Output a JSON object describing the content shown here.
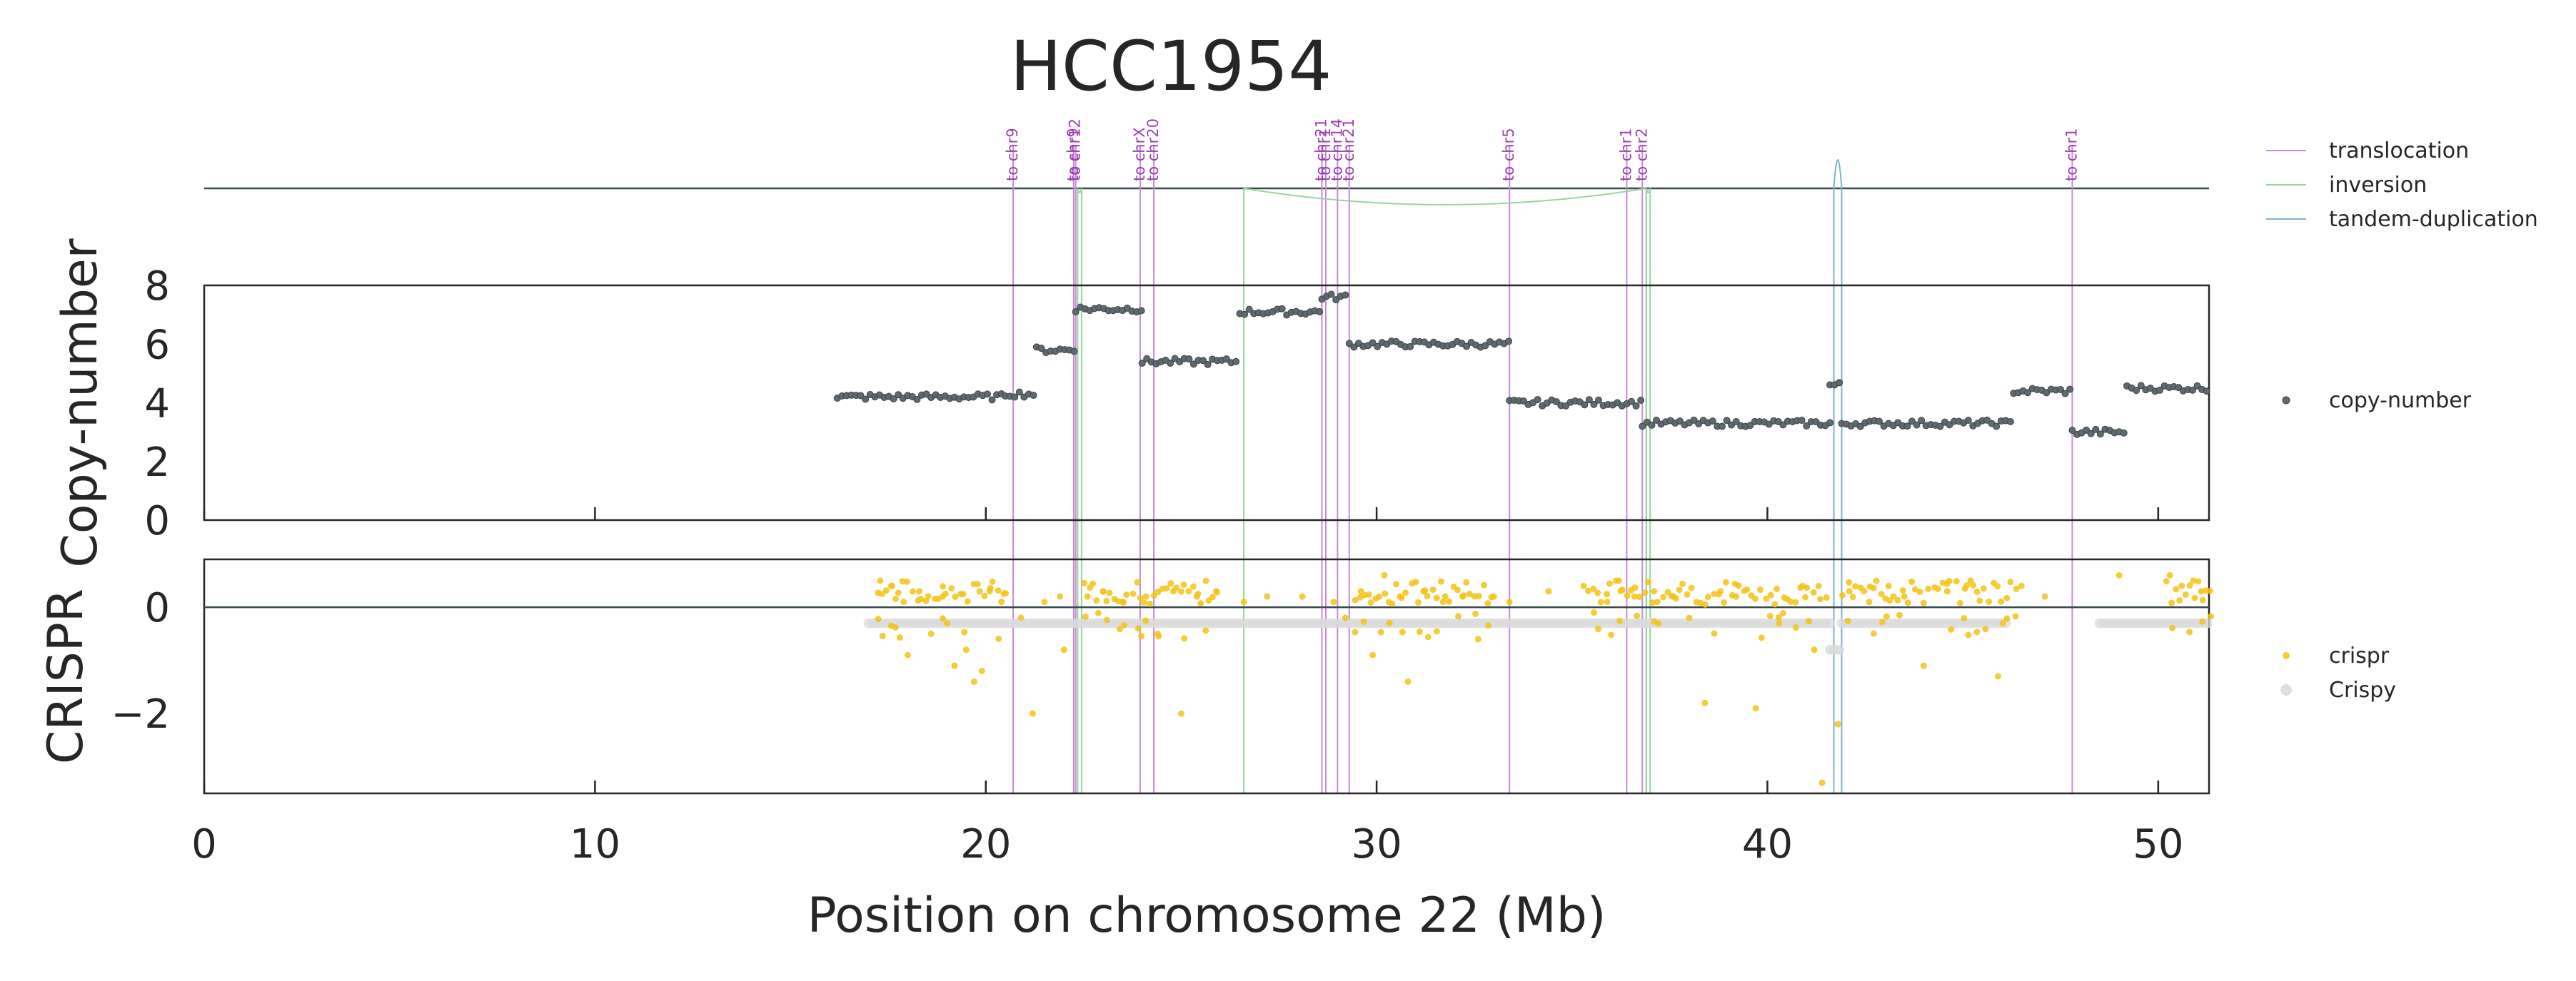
{
  "chart_data": {
    "type": "scatter",
    "title": "HCC1954",
    "xlabel": "Position on chromosome 22 (Mb)",
    "xlim": [
      0,
      51.3
    ],
    "x_ticks": [
      0,
      10,
      20,
      30,
      40,
      50
    ],
    "sv_track": {
      "translocations": [
        {
          "x": 20.7,
          "label": "to chr9"
        },
        {
          "x": 22.25,
          "label": "to chr9"
        },
        {
          "x": 22.3,
          "label": "to chr12"
        },
        {
          "x": 23.95,
          "label": "to chrX"
        },
        {
          "x": 24.3,
          "label": "to chr20"
        },
        {
          "x": 28.6,
          "label": "to chr21"
        },
        {
          "x": 28.7,
          "label": "to chr1"
        },
        {
          "x": 29.0,
          "label": "to chr14"
        },
        {
          "x": 29.3,
          "label": "to chr21"
        },
        {
          "x": 33.4,
          "label": "to chr5"
        },
        {
          "x": 36.4,
          "label": "to chr1"
        },
        {
          "x": 36.8,
          "label": "to chr2"
        },
        {
          "x": 47.8,
          "label": "to chr1"
        }
      ],
      "inversions": [
        {
          "start": 22.35,
          "end": 22.45
        },
        {
          "start": 26.6,
          "end": 36.9
        },
        {
          "start": 36.9,
          "end": 37.0
        }
      ],
      "tandem_duplications": [
        {
          "start": 41.7,
          "end": 41.9
        }
      ],
      "legend": [
        {
          "label": "translocation",
          "color": "#c68bd6"
        },
        {
          "label": "inversion",
          "color": "#98d4a0"
        },
        {
          "label": "tandem-duplication",
          "color": "#7fb3c9"
        }
      ]
    },
    "copy_number": {
      "ylabel": "Copy-number",
      "ylim": [
        0,
        8
      ],
      "y_ticks": [
        0,
        2,
        4,
        6,
        8
      ],
      "color": "#5f6a6f",
      "legend_label": "copy-number",
      "segments": [
        {
          "start": 16.2,
          "end": 20.5,
          "value": 4.2
        },
        {
          "start": 20.5,
          "end": 21.3,
          "value": 4.3
        },
        {
          "start": 21.3,
          "end": 22.3,
          "value": 5.8
        },
        {
          "start": 22.3,
          "end": 24.0,
          "value": 7.2
        },
        {
          "start": 24.0,
          "end": 26.5,
          "value": 5.4
        },
        {
          "start": 26.5,
          "end": 28.6,
          "value": 7.1
        },
        {
          "start": 28.6,
          "end": 29.3,
          "value": 7.6
        },
        {
          "start": 29.3,
          "end": 33.4,
          "value": 6.0
        },
        {
          "start": 33.4,
          "end": 36.8,
          "value": 4.0
        },
        {
          "start": 36.8,
          "end": 41.6,
          "value": 3.3
        },
        {
          "start": 41.6,
          "end": 41.9,
          "value": 4.6
        },
        {
          "start": 41.9,
          "end": 46.3,
          "value": 3.3
        },
        {
          "start": 46.3,
          "end": 47.8,
          "value": 4.4
        },
        {
          "start": 47.8,
          "end": 49.2,
          "value": 3.0
        },
        {
          "start": 49.2,
          "end": 51.3,
          "value": 4.5
        }
      ]
    },
    "crispr": {
      "ylabel": "CRISPR",
      "ylim": [
        -3.5,
        0.9
      ],
      "y_ticks": [
        -2,
        0
      ],
      "series": [
        {
          "name": "crispr",
          "color": "#f2c318"
        },
        {
          "name": "Crispy",
          "color": "#d9d9d9"
        }
      ],
      "crispy_segments": [
        {
          "start": 17.0,
          "end": 29.3,
          "value": -0.3
        },
        {
          "start": 29.3,
          "end": 36.8,
          "value": -0.3
        },
        {
          "start": 36.8,
          "end": 41.6,
          "value": -0.3
        },
        {
          "start": 41.6,
          "end": 41.9,
          "value": -0.8
        },
        {
          "start": 41.9,
          "end": 46.2,
          "value": -0.3
        },
        {
          "start": 48.5,
          "end": 51.3,
          "value": -0.3
        }
      ],
      "crispr_points": [
        [
          17.3,
          0.5
        ],
        [
          17.6,
          0.4
        ],
        [
          17.9,
          0.1
        ],
        [
          18.0,
          -0.9
        ],
        [
          18.3,
          0.3
        ],
        [
          18.6,
          -0.5
        ],
        [
          18.9,
          0.2
        ],
        [
          19.2,
          -1.1
        ],
        [
          19.5,
          -0.8
        ],
        [
          19.7,
          -1.4
        ],
        [
          19.9,
          -1.2
        ],
        [
          20.1,
          0.3
        ],
        [
          20.4,
          0.1
        ],
        [
          20.9,
          -0.2
        ],
        [
          21.2,
          -2.0
        ],
        [
          21.5,
          0.1
        ],
        [
          21.9,
          0.2
        ],
        [
          22.0,
          -0.8
        ],
        [
          22.6,
          0.2
        ],
        [
          23.0,
          0.3
        ],
        [
          23.5,
          0.1
        ],
        [
          23.9,
          -0.4
        ],
        [
          24.1,
          0.2
        ],
        [
          24.4,
          -0.5
        ],
        [
          24.8,
          0.3
        ],
        [
          25.0,
          -2.0
        ],
        [
          25.4,
          0.2
        ],
        [
          25.9,
          0.3
        ],
        [
          26.6,
          0.1
        ],
        [
          27.2,
          0.2
        ],
        [
          28.1,
          0.2
        ],
        [
          28.9,
          0.1
        ],
        [
          29.2,
          -0.2
        ],
        [
          29.6,
          0.3
        ],
        [
          29.9,
          -0.9
        ],
        [
          30.2,
          0.6
        ],
        [
          30.6,
          0.2
        ],
        [
          30.8,
          -1.4
        ],
        [
          31.2,
          0.3
        ],
        [
          31.7,
          0.1
        ],
        [
          32.2,
          0.2
        ],
        [
          32.6,
          -0.6
        ],
        [
          33.0,
          0.2
        ],
        [
          33.4,
          0.1
        ],
        [
          34.4,
          0.3
        ],
        [
          35.3,
          0.4
        ],
        [
          35.9,
          0.1
        ],
        [
          36.2,
          0.5
        ],
        [
          36.6,
          0.2
        ],
        [
          37.1,
          0.3
        ],
        [
          37.6,
          0.2
        ],
        [
          38.0,
          -0.2
        ],
        [
          38.4,
          -1.8
        ],
        [
          38.8,
          0.3
        ],
        [
          39.2,
          0.2
        ],
        [
          39.7,
          -1.9
        ],
        [
          40.3,
          -0.3
        ],
        [
          40.9,
          0.4
        ],
        [
          41.2,
          -0.8
        ],
        [
          41.4,
          -3.3
        ],
        [
          41.8,
          -2.2
        ],
        [
          42.1,
          0.3
        ],
        [
          42.6,
          0.1
        ],
        [
          43.1,
          0.4
        ],
        [
          43.5,
          0.2
        ],
        [
          44.0,
          -1.1
        ],
        [
          44.6,
          0.3
        ],
        [
          45.2,
          0.5
        ],
        [
          45.9,
          -1.3
        ],
        [
          46.5,
          0.4
        ],
        [
          47.1,
          0.2
        ],
        [
          49.0,
          0.6
        ],
        [
          50.3,
          0.6
        ],
        [
          50.6,
          0.4
        ],
        [
          50.9,
          0.5
        ],
        [
          51.1,
          0.3
        ]
      ]
    }
  }
}
